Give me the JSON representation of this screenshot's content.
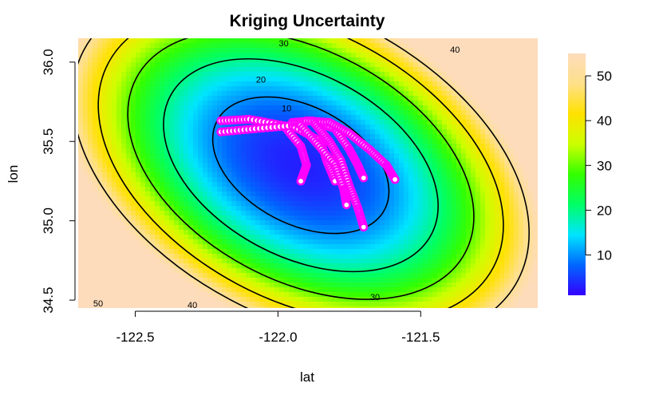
{
  "chart_data": {
    "type": "heatmap",
    "title": "Kriging Uncertainty",
    "xlabel": "lat",
    "ylabel": "lon",
    "xlim": [
      -122.7,
      -121.09
    ],
    "ylim": [
      34.45,
      36.15
    ],
    "x_ticks": [
      -122.5,
      -122.0,
      -121.5
    ],
    "x_tick_labels": [
      "-122.5",
      "-122.0",
      "-121.5"
    ],
    "y_ticks": [
      34.5,
      35.0,
      35.5,
      36.0
    ],
    "y_tick_labels": [
      "34.5",
      "35.0",
      "35.5",
      "36.0"
    ],
    "colorbar": {
      "range": [
        1,
        55
      ],
      "ticks": [
        10,
        20,
        30,
        40,
        50
      ],
      "tick_labels": [
        "10",
        "20",
        "30",
        "40",
        "50"
      ],
      "colors": [
        "#3300ff",
        "#0066ff",
        "#00e5ff",
        "#00ff66",
        "#33ff00",
        "#ccff00",
        "#ffe100",
        "#ffe08a",
        "#fddcbc"
      ]
    },
    "contours": {
      "levels": [
        10,
        20,
        30,
        40,
        50
      ],
      "labels": [
        {
          "text": "10",
          "x": -121.97,
          "y": 35.71
        },
        {
          "text": "20",
          "x": -122.06,
          "y": 35.89
        },
        {
          "text": "30",
          "x": -121.98,
          "y": 36.12
        },
        {
          "text": "30",
          "x": -121.66,
          "y": 34.52
        },
        {
          "text": "40",
          "x": -121.38,
          "y": 36.08
        },
        {
          "text": "40",
          "x": -122.3,
          "y": 34.47
        },
        {
          "text": "50",
          "x": -122.63,
          "y": 34.48
        }
      ]
    },
    "field_center": [
      -121.92,
      35.35
    ],
    "sample_tracks": [
      [
        [
          -122.2,
          35.63
        ],
        [
          -122.1,
          35.64
        ],
        [
          -121.98,
          35.6
        ],
        [
          -121.92,
          35.47
        ],
        [
          -121.9,
          35.35
        ],
        [
          -121.92,
          35.25
        ]
      ],
      [
        [
          -122.2,
          35.56
        ],
        [
          -122.08,
          35.58
        ],
        [
          -121.95,
          35.6
        ],
        [
          -121.85,
          35.5
        ],
        [
          -121.83,
          35.38
        ],
        [
          -121.8,
          35.25
        ]
      ],
      [
        [
          -121.95,
          35.62
        ],
        [
          -121.88,
          35.63
        ],
        [
          -121.8,
          35.58
        ],
        [
          -121.75,
          35.45
        ],
        [
          -121.72,
          35.35
        ],
        [
          -121.7,
          35.27
        ]
      ],
      [
        [
          -121.9,
          35.63
        ],
        [
          -121.82,
          35.62
        ],
        [
          -121.75,
          35.55
        ],
        [
          -121.68,
          35.45
        ],
        [
          -121.62,
          35.35
        ],
        [
          -121.59,
          35.26
        ]
      ],
      [
        [
          -121.87,
          35.61
        ],
        [
          -121.82,
          35.5
        ],
        [
          -121.78,
          35.38
        ],
        [
          -121.75,
          35.22
        ],
        [
          -121.72,
          35.08
        ],
        [
          -121.7,
          34.96
        ]
      ],
      [
        [
          -121.92,
          35.6
        ],
        [
          -121.86,
          35.48
        ],
        [
          -121.8,
          35.35
        ],
        [
          -121.77,
          35.2
        ],
        [
          -121.76,
          35.1
        ]
      ]
    ]
  }
}
